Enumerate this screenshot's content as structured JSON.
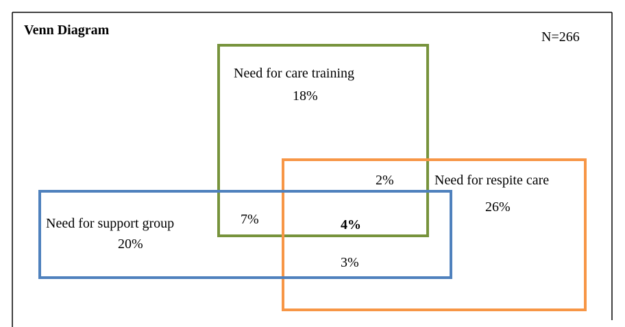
{
  "title": "Venn Diagram",
  "n_label": "N=266",
  "sets": [
    {
      "label": "Need for care training",
      "color": "#77933c"
    },
    {
      "label": "Need for respite care",
      "color": "#f79646"
    },
    {
      "label": "Need for support group",
      "color": "#4f81bd"
    }
  ],
  "regions": {
    "training_only": "18%",
    "respite_only": "26%",
    "support_only": "20%",
    "training_respite": "2%",
    "training_support": "7%",
    "all_three": "4%",
    "respite_support": "3%"
  }
}
